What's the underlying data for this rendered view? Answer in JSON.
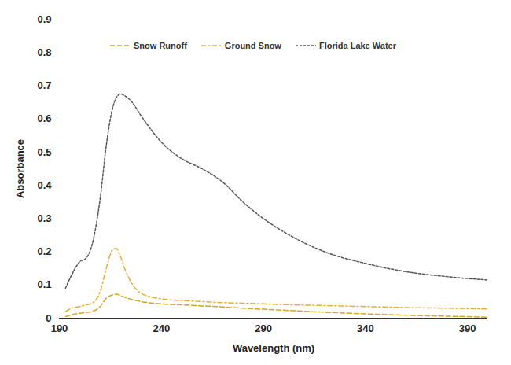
{
  "chart_data": {
    "type": "line",
    "x_label": "Wavelength (nm)",
    "y_label": "Absorbance",
    "x": [
      193,
      196,
      200,
      203,
      206,
      210,
      213,
      216,
      218,
      220,
      222,
      225,
      230,
      240,
      250,
      260,
      270,
      280,
      290,
      300,
      320,
      340,
      360,
      380,
      400
    ],
    "series": [
      {
        "name": "Snow Runoff",
        "color": "#d4a52a",
        "line_style": "dashed",
        "values": [
          0.005,
          0.01,
          0.015,
          0.017,
          0.02,
          0.035,
          0.06,
          0.07,
          0.072,
          0.068,
          0.063,
          0.057,
          0.05,
          0.043,
          0.04,
          0.037,
          0.034,
          0.03,
          0.027,
          0.024,
          0.018,
          0.013,
          0.009,
          0.006,
          0.003
        ]
      },
      {
        "name": "Ground Snow",
        "color": "#e3ae3a",
        "line_style": "dashdot",
        "values": [
          0.02,
          0.03,
          0.035,
          0.04,
          0.045,
          0.08,
          0.15,
          0.205,
          0.21,
          0.185,
          0.15,
          0.11,
          0.075,
          0.058,
          0.053,
          0.05,
          0.047,
          0.045,
          0.043,
          0.041,
          0.038,
          0.035,
          0.032,
          0.03,
          0.028
        ]
      },
      {
        "name": "Florida Lake Water",
        "color": "#555555",
        "line_style": "dotted",
        "values": [
          0.09,
          0.13,
          0.17,
          0.18,
          0.22,
          0.36,
          0.52,
          0.63,
          0.665,
          0.675,
          0.67,
          0.655,
          0.61,
          0.53,
          0.48,
          0.45,
          0.41,
          0.35,
          0.3,
          0.26,
          0.2,
          0.165,
          0.14,
          0.125,
          0.115
        ]
      }
    ],
    "xlim": [
      190,
      400
    ],
    "xticks": [
      190,
      240,
      290,
      340,
      390
    ],
    "ylim": [
      0,
      0.9
    ],
    "yticks": [
      0,
      0.1,
      0.2,
      0.3,
      0.4,
      0.5,
      0.6,
      0.7,
      0.8,
      0.9
    ],
    "grid": false,
    "legend": "top"
  }
}
